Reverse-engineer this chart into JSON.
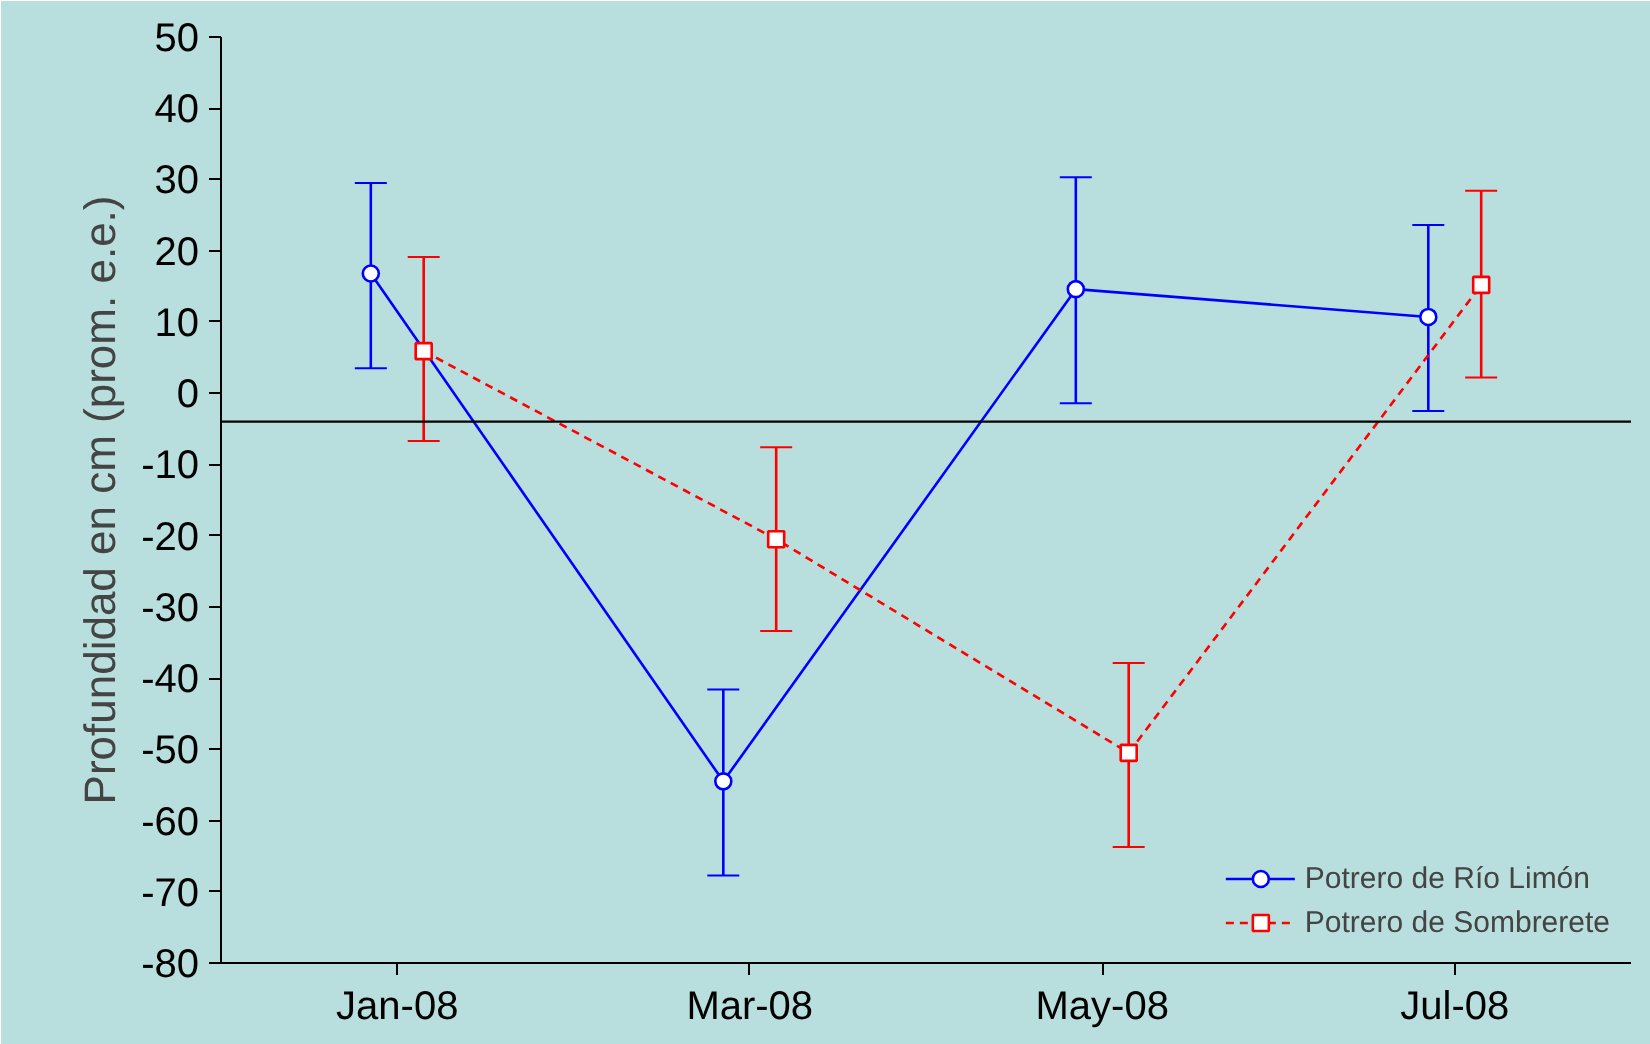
{
  "chart_data": {
    "type": "line",
    "ylabel": "Profundidad en cm (prom. e.e.)",
    "categories": [
      "Jan-08",
      "Mar-08",
      "May-08",
      "Jul-08"
    ],
    "series": [
      {
        "name": "Potrero de Río Limón",
        "color": "#0000ff",
        "values": [
          16.8,
          -54.5,
          14.6,
          10.7
        ],
        "errors": [
          [
            3.5,
            29.5
          ],
          [
            -67.7,
            -41.6
          ],
          [
            -1.4,
            30.3
          ],
          [
            -2.5,
            23.6
          ]
        ],
        "marker": "circle",
        "line_style": "solid"
      },
      {
        "name": "Potrero de Sombrerete",
        "color": "#ff0000",
        "values": [
          5.9,
          -20.5,
          -50.5,
          15.2
        ],
        "errors": [
          [
            -6.7,
            19.1
          ],
          [
            -33.4,
            -7.6
          ],
          [
            -63.7,
            -37.9
          ],
          [
            2.2,
            28.4
          ]
        ],
        "marker": "square",
        "line_style": "dashed"
      }
    ],
    "ylim": [
      -80,
      50
    ],
    "yticks": [
      -80,
      -70,
      -60,
      -50,
      -40,
      -30,
      -20,
      -10,
      0,
      10,
      20,
      30,
      40,
      50
    ],
    "ref_lines": [
      {
        "axis": "y",
        "value": -4,
        "color": "#000000"
      }
    ],
    "grid": false,
    "legend": "bottom right"
  }
}
